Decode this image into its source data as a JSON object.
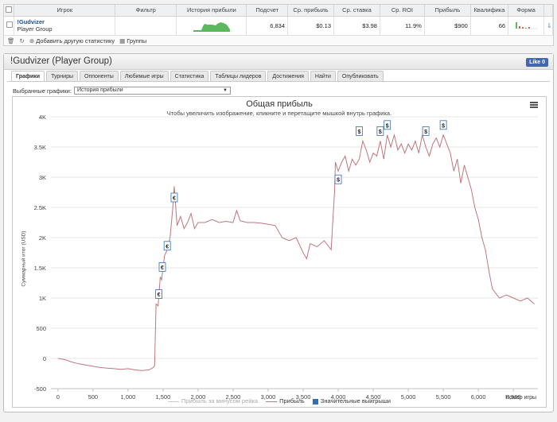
{
  "table": {
    "headers": [
      "Игрок",
      "Фильтр",
      "История прибыли",
      "Подсчет",
      "Ср. прибыль",
      "Ср. ставка",
      "Ср. ROI",
      "Прибыль",
      "Квалифика",
      "Форма"
    ],
    "row": {
      "player_name": "!Gudvizer",
      "player_group": "Player Group",
      "count": "6,834",
      "avg_profit": "$0.13",
      "avg_stake": "$3.98",
      "avg_roi": "11.9%",
      "profit": "$900",
      "qualification": "66"
    }
  },
  "toolbar": {
    "add_stat": "Добавить другую статистику",
    "groups": "Группы"
  },
  "panel": {
    "title": "!Gudvizer (Player Group)",
    "fb_like": "Like 0",
    "tabs": [
      "Графики",
      "Турниры",
      "Оппоненты",
      "Любимые игры",
      "Статистика",
      "Таблицы лидеров",
      "Достижения",
      "Найти",
      "Опубликовать"
    ],
    "selector_label": "Выбранные графики:",
    "selector_value": "История прибыли"
  },
  "chart_data": {
    "type": "line",
    "title": "Общая прибыль",
    "subtitle": "Чтобы увеличить изображение, кликните и перетащите мышкой внутрь графика.",
    "ylabel": "Суммарный итог (USD)",
    "xlabel": "Номер игры",
    "xlim": [
      -100,
      6850
    ],
    "ylim": [
      -500,
      4000
    ],
    "xticks": [
      0,
      500,
      1000,
      1500,
      2000,
      2500,
      3000,
      3500,
      4000,
      4500,
      5000,
      5500,
      6000,
      6500
    ],
    "xtick_labels": [
      "0",
      "500",
      "1,000",
      "1,500",
      "2,000",
      "2,500",
      "3,000",
      "3,500",
      "4,000",
      "4,500",
      "5,000",
      "5,500",
      "6,000",
      "6,500"
    ],
    "yticks": [
      -500,
      0,
      500,
      1000,
      1500,
      2000,
      2500,
      3000,
      3500,
      4000
    ],
    "ytick_labels": [
      "-500",
      "0",
      "500",
      "1K",
      "1.5K",
      "2K",
      "2.5K",
      "3K",
      "3.5K",
      "4K"
    ],
    "legend": [
      "Прибыль за минусом рейка",
      "Прибыль",
      "Значительные выигрыши"
    ],
    "line_color": "#c0767d",
    "series": [
      {
        "name": "Прибыль",
        "x": [
          0,
          100,
          200,
          300,
          400,
          500,
          600,
          700,
          800,
          900,
          1000,
          1100,
          1200,
          1300,
          1360,
          1380,
          1400,
          1430,
          1460,
          1480,
          1520,
          1560,
          1600,
          1640,
          1660,
          1700,
          1750,
          1800,
          1850,
          1900,
          1950,
          2000,
          2100,
          2200,
          2300,
          2400,
          2500,
          2550,
          2600,
          2700,
          2800,
          2900,
          3000,
          3100,
          3200,
          3300,
          3400,
          3500,
          3550,
          3600,
          3700,
          3800,
          3900,
          3950,
          3960,
          4000,
          4050,
          4100,
          4150,
          4200,
          4250,
          4300,
          4350,
          4400,
          4450,
          4500,
          4550,
          4600,
          4650,
          4700,
          4750,
          4800,
          4850,
          4900,
          4950,
          5000,
          5050,
          5100,
          5150,
          5200,
          5250,
          5300,
          5350,
          5400,
          5450,
          5500,
          5550,
          5600,
          5650,
          5700,
          5750,
          5800,
          5850,
          5900,
          5950,
          6000,
          6050,
          6100,
          6150,
          6200,
          6300,
          6400,
          6500,
          6600,
          6700,
          6800
        ],
        "y": [
          0,
          -20,
          -60,
          -90,
          -110,
          -130,
          -150,
          -160,
          -170,
          -180,
          -170,
          -190,
          -200,
          -190,
          -150,
          -120,
          900,
          870,
          1350,
          1300,
          1700,
          1800,
          2000,
          2500,
          2850,
          2200,
          2350,
          2150,
          2250,
          2400,
          2150,
          2250,
          2250,
          2300,
          2250,
          2270,
          2250,
          2450,
          2280,
          2250,
          2250,
          2240,
          2220,
          2200,
          2000,
          1950,
          2000,
          1750,
          1650,
          1900,
          1850,
          1950,
          1800,
          2800,
          3250,
          3100,
          3250,
          3350,
          3100,
          3300,
          3200,
          3300,
          3600,
          3450,
          3250,
          3400,
          3350,
          3600,
          3300,
          3700,
          3500,
          3700,
          3450,
          3550,
          3400,
          3550,
          3450,
          3600,
          3400,
          3700,
          3500,
          3350,
          3550,
          3650,
          3500,
          3700,
          3550,
          3400,
          3100,
          3300,
          2900,
          3200,
          3000,
          2800,
          2500,
          2300,
          2000,
          1800,
          1450,
          1150,
          1000,
          1050,
          1000,
          950,
          1000,
          900
        ]
      }
    ],
    "big_wins": [
      {
        "x": 1440,
        "y": 900,
        "label": "€"
      },
      {
        "x": 1490,
        "y": 1350,
        "label": "€"
      },
      {
        "x": 1560,
        "y": 1700,
        "label": "€"
      },
      {
        "x": 1660,
        "y": 2500,
        "label": "€"
      },
      {
        "x": 4000,
        "y": 2800,
        "label": "$"
      },
      {
        "x": 4300,
        "y": 3600,
        "label": "$"
      },
      {
        "x": 4600,
        "y": 3600,
        "label": "$"
      },
      {
        "x": 4700,
        "y": 3700,
        "label": "$"
      },
      {
        "x": 5250,
        "y": 3600,
        "label": "$"
      },
      {
        "x": 5500,
        "y": 3700,
        "label": "$"
      }
    ]
  }
}
